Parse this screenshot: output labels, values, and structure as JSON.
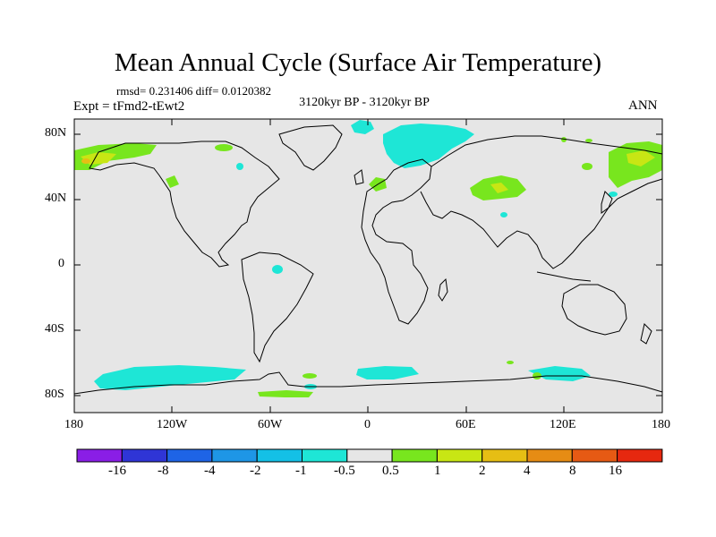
{
  "title": "Mean Annual Cycle (Surface Air Temperature)",
  "stats": "rmsd= 0.231406 diff= 0.0120382",
  "experiment": "Expt = tFmd2-tEwt2",
  "period": "3120kyr BP - 3120kyr BP",
  "season": "ANN",
  "lat_labels": [
    "80N",
    "40N",
    "0",
    "40S",
    "80S"
  ],
  "lon_labels": [
    "180",
    "120W",
    "60W",
    "0",
    "60E",
    "120E",
    "180"
  ],
  "colorbar": {
    "labels": [
      "-16",
      "-8",
      "-4",
      "-2",
      "-1",
      "-0.5",
      "0.5",
      "1",
      "2",
      "4",
      "8",
      "16"
    ],
    "colors": [
      "#8a1ee6",
      "#2f35d6",
      "#1e64e6",
      "#1e96e6",
      "#14c0e6",
      "#1ee6d6",
      "#e6e6e6",
      "#78e61e",
      "#c8e614",
      "#e6be14",
      "#e68c14",
      "#e65a14",
      "#e6280f"
    ]
  },
  "colors": {
    "ocean_bg": "#e6e6e6",
    "coast": "#000000"
  }
}
